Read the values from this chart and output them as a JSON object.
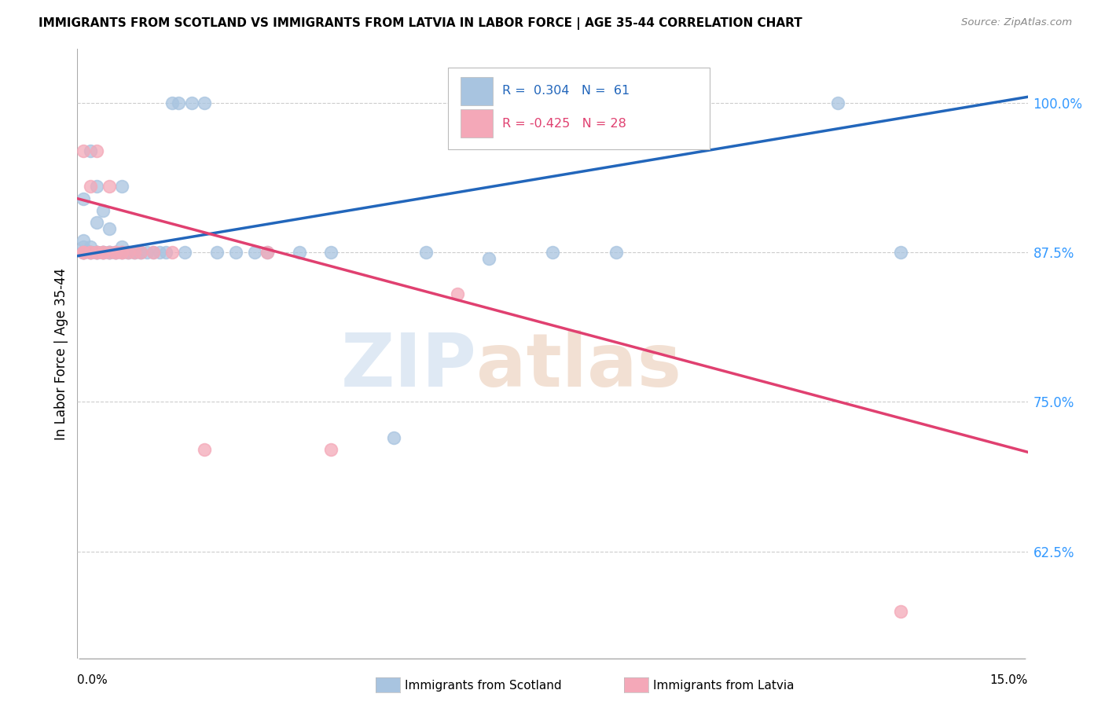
{
  "title": "IMMIGRANTS FROM SCOTLAND VS IMMIGRANTS FROM LATVIA IN LABOR FORCE | AGE 35-44 CORRELATION CHART",
  "source": "Source: ZipAtlas.com",
  "ylabel": "In Labor Force | Age 35-44",
  "yticks": [
    0.625,
    0.75,
    0.875,
    1.0
  ],
  "ytick_labels": [
    "62.5%",
    "75.0%",
    "87.5%",
    "100.0%"
  ],
  "xlim": [
    0.0,
    0.15
  ],
  "ylim": [
    0.535,
    1.045
  ],
  "legend_label_scotland": "Immigrants from Scotland",
  "legend_label_latvia": "Immigrants from Latvia",
  "r_scotland": 0.304,
  "n_scotland": 61,
  "r_latvia": -0.425,
  "n_latvia": 28,
  "scotland_color": "#a8c4e0",
  "latvia_color": "#f4a8b8",
  "scotland_line_color": "#2266bb",
  "latvia_line_color": "#e04070",
  "watermark": "ZIPatlas",
  "blue_line_x": [
    0.0,
    0.15
  ],
  "blue_line_y": [
    0.872,
    1.005
  ],
  "pink_line_x": [
    0.0,
    0.15
  ],
  "pink_line_y": [
    0.92,
    0.708
  ],
  "scotland_x": [
    0.001,
    0.001,
    0.001,
    0.001,
    0.001,
    0.001,
    0.001,
    0.002,
    0.002,
    0.002,
    0.002,
    0.002,
    0.003,
    0.003,
    0.003,
    0.003,
    0.003,
    0.003,
    0.004,
    0.004,
    0.004,
    0.004,
    0.005,
    0.005,
    0.005,
    0.005,
    0.006,
    0.006,
    0.006,
    0.007,
    0.007,
    0.007,
    0.007,
    0.008,
    0.008,
    0.009,
    0.009,
    0.01,
    0.01,
    0.011,
    0.012,
    0.013,
    0.014,
    0.015,
    0.016,
    0.017,
    0.018,
    0.02,
    0.022,
    0.025,
    0.028,
    0.03,
    0.035,
    0.04,
    0.05,
    0.055,
    0.065,
    0.075,
    0.085,
    0.12,
    0.13
  ],
  "scotland_y": [
    0.875,
    0.875,
    0.875,
    0.875,
    0.88,
    0.885,
    0.92,
    0.875,
    0.875,
    0.875,
    0.88,
    0.96,
    0.875,
    0.875,
    0.875,
    0.875,
    0.9,
    0.93,
    0.875,
    0.875,
    0.875,
    0.91,
    0.875,
    0.875,
    0.875,
    0.895,
    0.875,
    0.875,
    0.875,
    0.875,
    0.875,
    0.88,
    0.93,
    0.875,
    0.875,
    0.875,
    0.875,
    0.875,
    0.875,
    0.875,
    0.875,
    0.875,
    0.875,
    1.0,
    1.0,
    0.875,
    1.0,
    1.0,
    0.875,
    0.875,
    0.875,
    0.875,
    0.875,
    0.875,
    0.72,
    0.875,
    0.87,
    0.875,
    0.875,
    1.0,
    0.875
  ],
  "latvia_x": [
    0.001,
    0.001,
    0.001,
    0.001,
    0.002,
    0.002,
    0.002,
    0.003,
    0.003,
    0.003,
    0.004,
    0.004,
    0.005,
    0.005,
    0.006,
    0.006,
    0.007,
    0.007,
    0.008,
    0.009,
    0.01,
    0.012,
    0.015,
    0.02,
    0.03,
    0.04,
    0.06,
    0.13
  ],
  "latvia_y": [
    0.875,
    0.875,
    0.875,
    0.96,
    0.875,
    0.875,
    0.93,
    0.875,
    0.875,
    0.96,
    0.875,
    0.875,
    0.875,
    0.93,
    0.875,
    0.875,
    0.875,
    0.875,
    0.875,
    0.875,
    0.875,
    0.875,
    0.875,
    0.71,
    0.875,
    0.71,
    0.84,
    0.575
  ]
}
